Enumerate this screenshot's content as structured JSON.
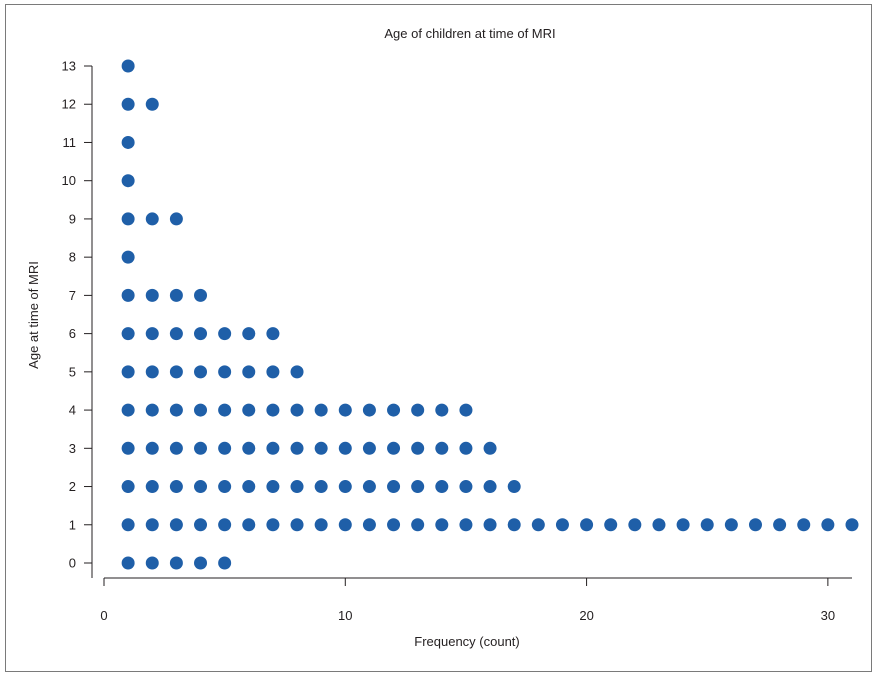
{
  "chart_data": {
    "type": "scatter",
    "subtype": "dot-plot",
    "title": "Age of children at time of MRI",
    "xlabel": "Frequency (count)",
    "ylabel": "Age at time of MRI",
    "xlim": [
      0,
      31
    ],
    "ylim": [
      0,
      13
    ],
    "xticks": [
      0,
      10,
      20,
      30
    ],
    "yticks": [
      0,
      1,
      2,
      3,
      4,
      5,
      6,
      7,
      8,
      9,
      10,
      11,
      12,
      13
    ],
    "grid": false,
    "legend": "none",
    "marker_color": "#1f5fa8",
    "counts_by_age": [
      {
        "age": 0,
        "count": 5
      },
      {
        "age": 1,
        "count": 31
      },
      {
        "age": 2,
        "count": 17
      },
      {
        "age": 3,
        "count": 16
      },
      {
        "age": 4,
        "count": 15
      },
      {
        "age": 5,
        "count": 8
      },
      {
        "age": 6,
        "count": 7
      },
      {
        "age": 7,
        "count": 4
      },
      {
        "age": 8,
        "count": 1
      },
      {
        "age": 9,
        "count": 3
      },
      {
        "age": 10,
        "count": 1
      },
      {
        "age": 11,
        "count": 1
      },
      {
        "age": 12,
        "count": 2
      },
      {
        "age": 13,
        "count": 1
      }
    ]
  }
}
